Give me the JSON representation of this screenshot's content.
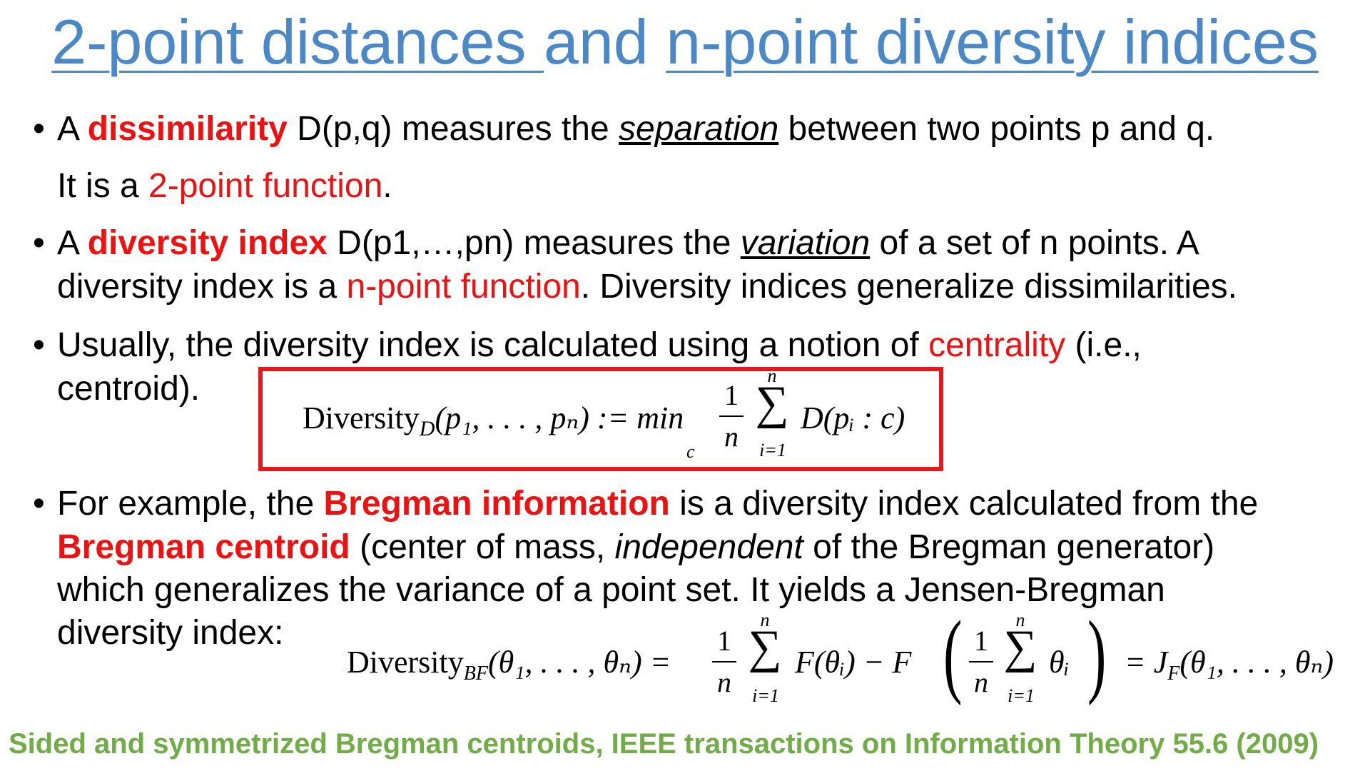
{
  "title": {
    "part1": "2-point distances ",
    "part2": "and ",
    "part3": "n-point diversity indices"
  },
  "bullet1": {
    "t1": "A ",
    "t2": "dissimilarity",
    "t3": " D(p,q) measures the ",
    "t4": "separation",
    "t5": " between two points p and q.",
    "line2a": "It is a ",
    "line2b": "2-point function",
    "line2c": "."
  },
  "bullet2": {
    "t1": "A ",
    "t2": "diversity index",
    "t3": " D(p1,…,pn) measures the ",
    "t4": "variation",
    "t5": " of a set of n points. A",
    "line2a": "diversity index is a ",
    "line2b": "n-point function",
    "line2c": ". Diversity indices generalize dissimilarities."
  },
  "bullet3": {
    "t1": "Usually, the diversity index is calculated using a notion of ",
    "t2": "centrality",
    "t3": "  (i.e.,",
    "line2": "centroid)."
  },
  "formula1": {
    "lhs": "Diversity",
    "sub": "D",
    "args": "(p₁, . . . , pₙ) := min",
    "min_sub": "c",
    "frac_num": "1",
    "frac_den": "n",
    "sum_top": "n",
    "sum_bottom": "i=1",
    "sum_symbol": "∑",
    "rhs": "D(pᵢ : c)"
  },
  "bullet4": {
    "t1": "For example, the ",
    "t2": "Bregman information",
    "t3": " is a diversity index calculated from the",
    "line2a": "Bregman centroid",
    "line2b": " (center of mass, ",
    "line2c": "independent",
    "line2d": " of the Bregman generator)",
    "line3": "which generalizes the variance of a point set. It yields a Jensen-Bregman",
    "line4": "diversity index:"
  },
  "formula2": {
    "lhs": "Diversity",
    "sub": "BF",
    "args": "(θ₁, . . . , θₙ) =",
    "frac_num": "1",
    "frac_den": "n",
    "sum_top": "n",
    "sum_bottom": "i=1",
    "sum_symbol": "∑",
    "mid": "F(θᵢ) − F",
    "lparen": "(",
    "inner_num": "1",
    "inner_den": "n",
    "inner_sum_top": "n",
    "inner_sum_bottom": "i=1",
    "inner_term": "θᵢ",
    "rparen": ")",
    "rhs": "= J",
    "rhs_sub": "F",
    "rhs_args": "(θ₁, . . . , θₙ)"
  },
  "footer": "Sided and symmetrized Bregman centroids, IEEE transactions on Information Theory 55.6 (2009)",
  "colors": {
    "title": "#4a88c8",
    "accent": "#ee1111",
    "footer": "#70ad47",
    "box": "#e41a1a"
  }
}
